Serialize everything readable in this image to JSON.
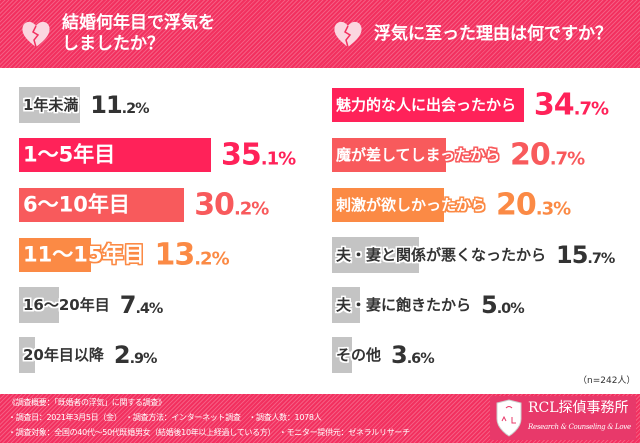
{
  "header": {
    "left_title_line1": "結婚何年目で浮気を",
    "left_title_line2": "しましたか？",
    "right_title": "浮気に至った理由は何ですか？"
  },
  "colors": {
    "red": "#ff2259",
    "salmon": "#f85a5c",
    "orange": "#fb8a45",
    "grey": "#c4c4c4",
    "dark": "#333333",
    "header": "#f2305f"
  },
  "chart_data": [
    {
      "type": "bar",
      "orientation": "horizontal",
      "title": "結婚何年目で浮気をしましたか？",
      "unit": "%",
      "categories": [
        "1年未満",
        "1〜5年目",
        "6〜10年目",
        "11〜15年目",
        "16〜20年目",
        "20年目以降"
      ],
      "values": [
        11.2,
        35.1,
        30.2,
        13.2,
        7.4,
        2.9
      ],
      "value_labels": [
        "11.2%",
        "35.1%",
        "30.2%",
        "13.2%",
        "7.4%",
        "2.9%"
      ],
      "colors": [
        "grey",
        "red",
        "salmon",
        "orange",
        "grey",
        "grey"
      ]
    },
    {
      "type": "bar",
      "orientation": "horizontal",
      "title": "浮気に至った理由は何ですか？",
      "unit": "%",
      "categories": [
        "魅力的な人に出会ったから",
        "魔が差してしまったから",
        "刺激が欲しかったから",
        "夫・妻と関係が悪くなったから",
        "夫・妻に飽きたから",
        "その他"
      ],
      "values": [
        34.7,
        20.7,
        20.3,
        15.7,
        5.0,
        3.6
      ],
      "value_labels": [
        "34.7%",
        "20.7%",
        "20.3%",
        "15.7%",
        "5.0%",
        "3.6%"
      ],
      "colors": [
        "red",
        "salmon",
        "orange",
        "grey",
        "grey",
        "grey"
      ],
      "note": "（n=242人）"
    }
  ],
  "footer": {
    "line1": "《調査概要：「既婚者の浮気」に関する調査》",
    "line2": "・調査日：2021年3月5日（金）　・調査方法：インターネット調査　・調査人数：1078人",
    "line3": "・調査対象：全国の40代〜50代既婚男女（結婚後10年以上経過している方）　・モニター提供元：ゼネラルリサーチ",
    "logo_name": "RCL探偵事務所",
    "logo_sub": "Research & Counseling & Love",
    "logo_letters": "CRL"
  }
}
